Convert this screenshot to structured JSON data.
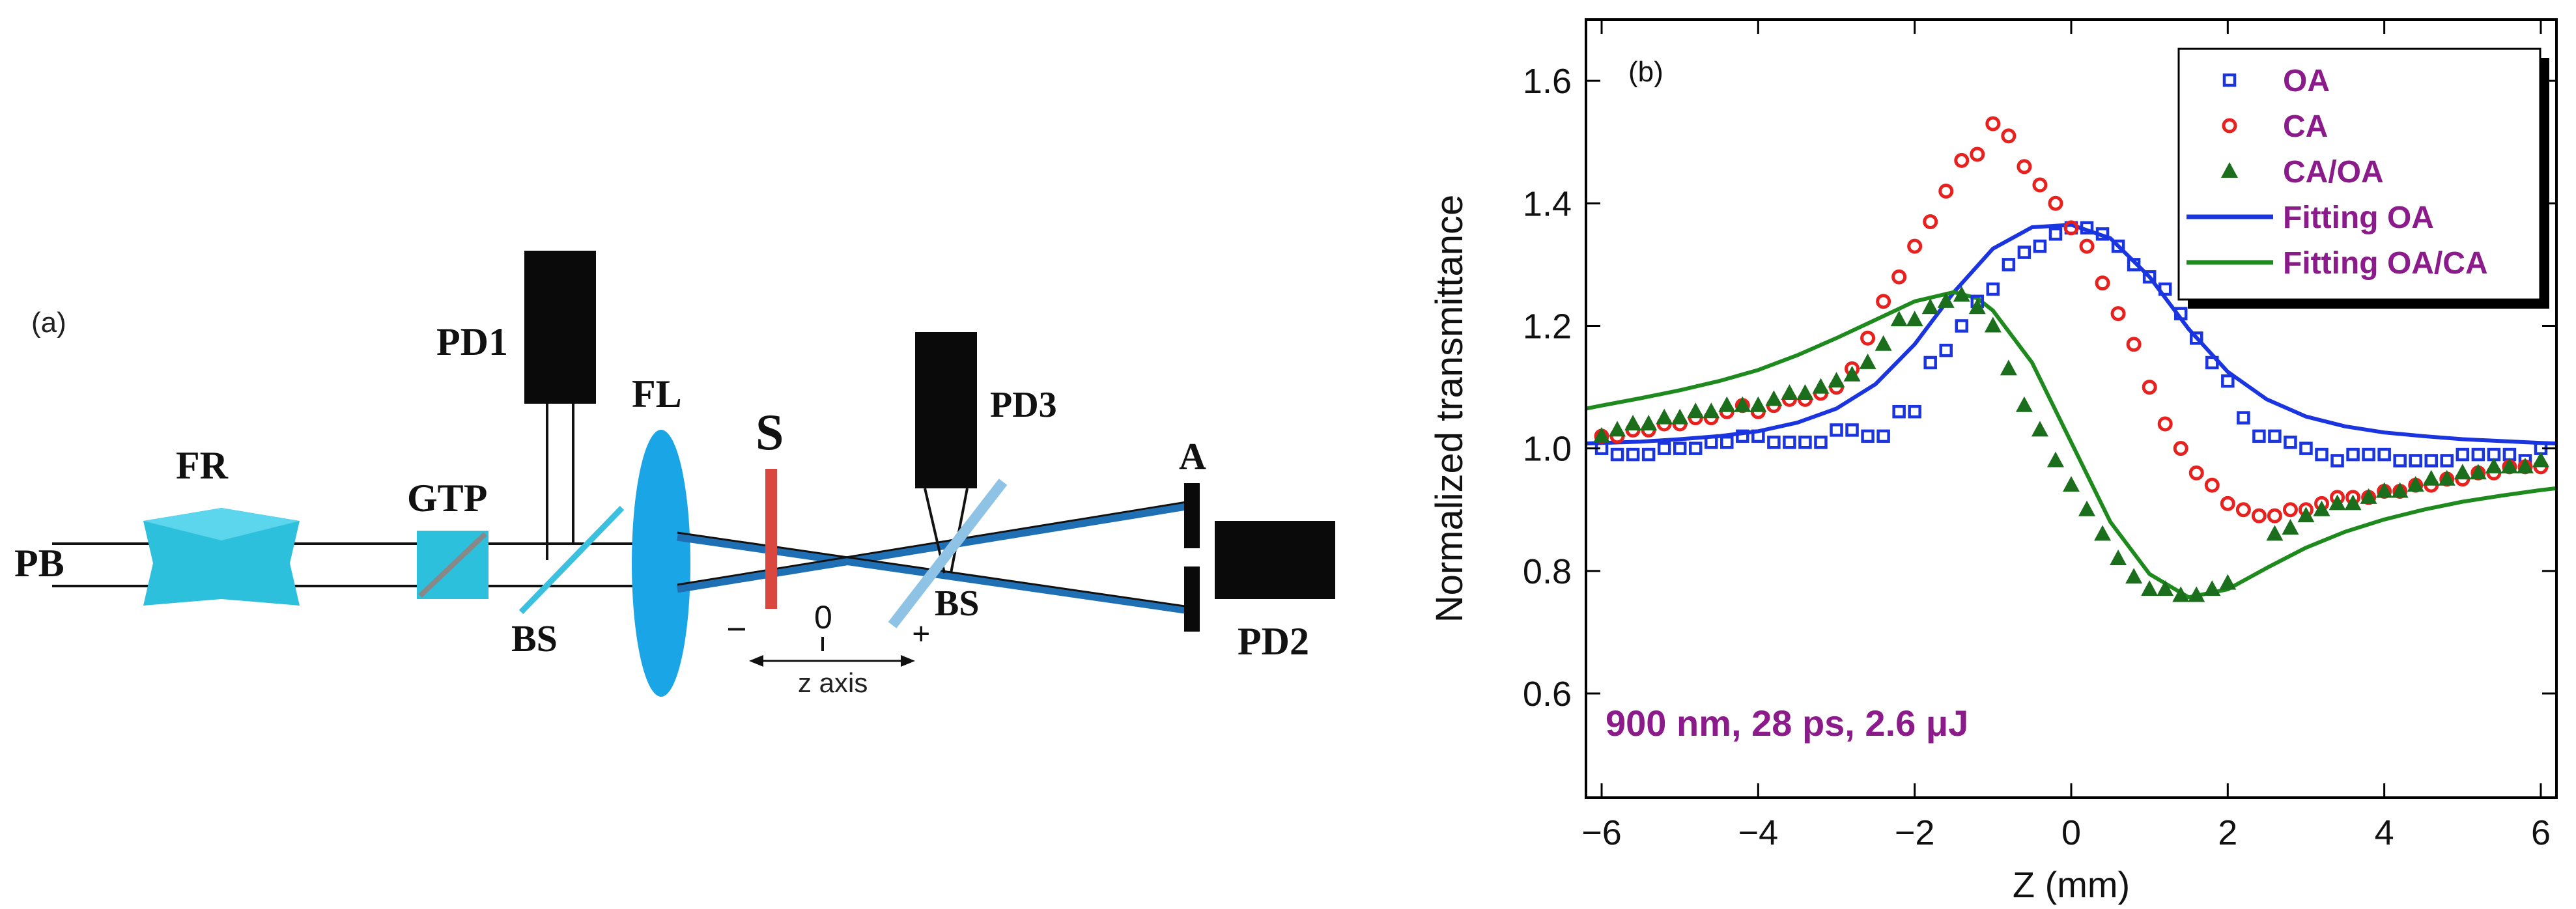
{
  "panel_a": {
    "label": "(a)",
    "components": {
      "pb": "PB",
      "fr": "FR",
      "gtp": "GTP",
      "pd1": "PD1",
      "bs1": "BS",
      "fl": "FL",
      "s": "S",
      "pd3": "PD3",
      "bs2": "BS",
      "a": "A",
      "pd2": "PD2"
    },
    "axis": {
      "minus": "−",
      "zero": "0",
      "plus": "+",
      "label": "z axis"
    },
    "colors": {
      "prism": "#2cc0dc",
      "lens": "#1aa5e6",
      "sample": "#d9473f",
      "beam": "#1f6fb5",
      "detector": "#0a0a0a",
      "splitter": "#3cc0e0"
    }
  },
  "chart_data": {
    "type": "scatter",
    "panel_label": "(b)",
    "xlabel": "Z (mm)",
    "ylabel": "Normalized transmittance",
    "xlim": [
      -6.2,
      6.2
    ],
    "ylim": [
      0.43,
      1.7
    ],
    "xticks": [
      -6,
      -4,
      -2,
      0,
      2,
      4,
      6
    ],
    "xtick_labels": [
      "−6",
      "−4",
      "−2",
      "0",
      "2",
      "4",
      "6"
    ],
    "yticks": [
      0.6,
      0.8,
      1.0,
      1.2,
      1.4,
      1.6
    ],
    "ytick_labels": [
      "0.6",
      "0.8",
      "1.0",
      "1.2",
      "1.4",
      "1.6"
    ],
    "annotation": "900 nm, 28 ps,  2.6 μJ",
    "annotation_color": "#8b1a8b",
    "legend_position": "top-right",
    "legend_text_color": "#8b1a8b",
    "series": [
      {
        "name": "OA",
        "marker": "square",
        "color": "#1a35e0",
        "x": [
          -6.0,
          -5.8,
          -5.6,
          -5.4,
          -5.2,
          -5.0,
          -4.8,
          -4.6,
          -4.4,
          -4.2,
          -4.0,
          -3.8,
          -3.6,
          -3.4,
          -3.2,
          -3.0,
          -2.8,
          -2.6,
          -2.4,
          -2.2,
          -2.0,
          -1.8,
          -1.6,
          -1.4,
          -1.2,
          -1.0,
          -0.8,
          -0.6,
          -0.4,
          -0.2,
          0.0,
          0.2,
          0.4,
          0.6,
          0.8,
          1.0,
          1.2,
          1.4,
          1.6,
          1.8,
          2.0,
          2.2,
          2.4,
          2.6,
          2.8,
          3.0,
          3.2,
          3.4,
          3.6,
          3.8,
          4.0,
          4.2,
          4.4,
          4.6,
          4.8,
          5.0,
          5.2,
          5.4,
          5.6,
          5.8,
          6.0
        ],
        "values": [
          1.0,
          0.99,
          0.99,
          0.99,
          1.0,
          1.0,
          1.0,
          1.01,
          1.01,
          1.02,
          1.02,
          1.01,
          1.01,
          1.01,
          1.01,
          1.03,
          1.03,
          1.02,
          1.02,
          1.06,
          1.06,
          1.14,
          1.16,
          1.2,
          1.24,
          1.26,
          1.3,
          1.32,
          1.33,
          1.35,
          1.36,
          1.36,
          1.35,
          1.33,
          1.3,
          1.28,
          1.26,
          1.22,
          1.18,
          1.14,
          1.11,
          1.05,
          1.02,
          1.02,
          1.01,
          1.0,
          0.99,
          0.98,
          0.99,
          0.99,
          0.99,
          0.98,
          0.98,
          0.98,
          0.98,
          0.99,
          0.99,
          0.99,
          0.99,
          0.98,
          1.0
        ]
      },
      {
        "name": "CA",
        "marker": "circle",
        "color": "#e8201e",
        "x": [
          -6.0,
          -5.8,
          -5.6,
          -5.4,
          -5.2,
          -5.0,
          -4.8,
          -4.6,
          -4.4,
          -4.2,
          -4.0,
          -3.8,
          -3.6,
          -3.4,
          -3.2,
          -3.0,
          -2.8,
          -2.6,
          -2.4,
          -2.2,
          -2.0,
          -1.8,
          -1.6,
          -1.4,
          -1.2,
          -1.0,
          -0.8,
          -0.6,
          -0.4,
          -0.2,
          0.0,
          0.2,
          0.4,
          0.6,
          0.8,
          1.0,
          1.2,
          1.4,
          1.6,
          1.8,
          2.0,
          2.2,
          2.4,
          2.6,
          2.8,
          3.0,
          3.2,
          3.4,
          3.6,
          3.8,
          4.0,
          4.2,
          4.4,
          4.6,
          4.8,
          5.0,
          5.2,
          5.4,
          5.6,
          5.8,
          6.0
        ],
        "values": [
          1.02,
          1.02,
          1.03,
          1.03,
          1.04,
          1.04,
          1.05,
          1.05,
          1.06,
          1.07,
          1.06,
          1.07,
          1.08,
          1.08,
          1.09,
          1.1,
          1.13,
          1.18,
          1.24,
          1.28,
          1.33,
          1.37,
          1.42,
          1.47,
          1.48,
          1.53,
          1.51,
          1.46,
          1.43,
          1.4,
          1.36,
          1.33,
          1.27,
          1.22,
          1.17,
          1.1,
          1.04,
          1.0,
          0.96,
          0.94,
          0.91,
          0.9,
          0.89,
          0.89,
          0.9,
          0.9,
          0.91,
          0.92,
          0.92,
          0.92,
          0.93,
          0.93,
          0.94,
          0.94,
          0.95,
          0.95,
          0.96,
          0.96,
          0.97,
          0.97,
          0.97
        ]
      },
      {
        "name": "CA/OA",
        "marker": "triangle",
        "color": "#1b6e1b",
        "x": [
          -6.0,
          -5.8,
          -5.6,
          -5.4,
          -5.2,
          -5.0,
          -4.8,
          -4.6,
          -4.4,
          -4.2,
          -4.0,
          -3.8,
          -3.6,
          -3.4,
          -3.2,
          -3.0,
          -2.8,
          -2.6,
          -2.4,
          -2.2,
          -2.0,
          -1.8,
          -1.6,
          -1.4,
          -1.2,
          -1.0,
          -0.8,
          -0.6,
          -0.4,
          -0.2,
          0.0,
          0.2,
          0.4,
          0.6,
          0.8,
          1.0,
          1.2,
          1.4,
          1.6,
          1.8,
          2.0,
          2.6,
          2.8,
          3.0,
          3.2,
          3.4,
          3.6,
          3.8,
          4.0,
          4.2,
          4.4,
          4.6,
          4.8,
          5.0,
          5.2,
          5.4,
          5.6,
          5.8,
          6.0
        ],
        "values": [
          1.02,
          1.03,
          1.04,
          1.04,
          1.05,
          1.05,
          1.06,
          1.06,
          1.07,
          1.07,
          1.07,
          1.08,
          1.09,
          1.09,
          1.1,
          1.11,
          1.12,
          1.14,
          1.17,
          1.21,
          1.21,
          1.23,
          1.24,
          1.25,
          1.23,
          1.2,
          1.13,
          1.07,
          1.03,
          0.98,
          0.94,
          0.9,
          0.86,
          0.82,
          0.79,
          0.77,
          0.77,
          0.76,
          0.76,
          0.77,
          0.78,
          0.86,
          0.87,
          0.89,
          0.9,
          0.91,
          0.91,
          0.92,
          0.93,
          0.93,
          0.94,
          0.95,
          0.95,
          0.96,
          0.96,
          0.97,
          0.97,
          0.97,
          0.98
        ]
      },
      {
        "name": "Fitting OA",
        "line": true,
        "color": "#1a35e0",
        "x": [
          -6.2,
          -6.0,
          -5.5,
          -5.0,
          -4.5,
          -4.0,
          -3.5,
          -3.0,
          -2.5,
          -2.0,
          -1.5,
          -1.0,
          -0.5,
          0.0,
          0.5,
          1.0,
          1.5,
          2.0,
          2.5,
          3.0,
          3.5,
          4.0,
          4.5,
          5.0,
          5.5,
          6.0,
          6.2
        ],
        "values": [
          1.008,
          1.009,
          1.011,
          1.015,
          1.02,
          1.028,
          1.042,
          1.065,
          1.105,
          1.17,
          1.255,
          1.326,
          1.361,
          1.365,
          1.343,
          1.28,
          1.195,
          1.125,
          1.08,
          1.052,
          1.036,
          1.026,
          1.02,
          1.015,
          1.012,
          1.009,
          1.008
        ]
      },
      {
        "name": "Fitting OA/CA",
        "line": true,
        "color": "#1e8a1e",
        "x": [
          -6.2,
          -6.0,
          -5.5,
          -5.0,
          -4.5,
          -4.0,
          -3.5,
          -3.0,
          -2.5,
          -2.0,
          -1.5,
          -1.2,
          -1.0,
          -0.5,
          0.0,
          0.5,
          1.0,
          1.5,
          2.0,
          2.5,
          3.0,
          3.5,
          4.0,
          4.5,
          5.0,
          5.5,
          6.0,
          6.2
        ],
        "values": [
          1.065,
          1.07,
          1.082,
          1.095,
          1.11,
          1.128,
          1.152,
          1.18,
          1.21,
          1.24,
          1.255,
          1.245,
          1.225,
          1.14,
          1.01,
          0.88,
          0.795,
          0.757,
          0.77,
          0.805,
          0.838,
          0.864,
          0.884,
          0.9,
          0.913,
          0.923,
          0.932,
          0.935
        ]
      }
    ]
  }
}
